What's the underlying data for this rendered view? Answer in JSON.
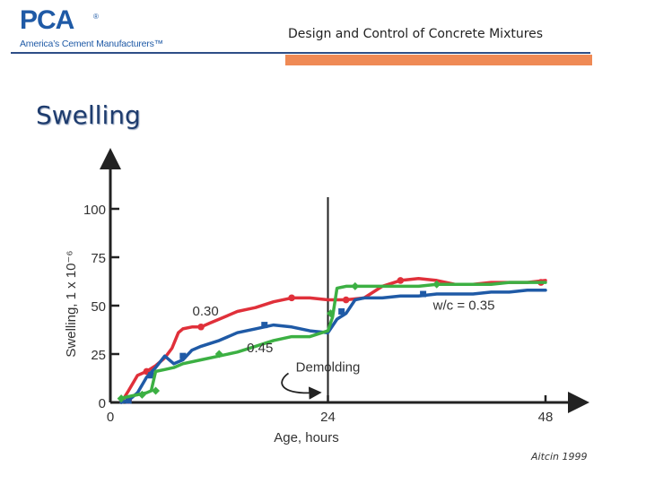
{
  "header": {
    "logo_text": "PCA",
    "logo_reg": "®",
    "logo_subtitle": "America’s Cement Manufacturers™",
    "title": "Design and Control of Concrete Mixtures"
  },
  "slide": {
    "title": "Swelling",
    "citation": "Aitcin 1999"
  },
  "colors": {
    "blue_rule": "#2e4e87",
    "orange_bar": "#ef8a55",
    "series_030": "#e0303a",
    "series_035": "#1f5aa6",
    "series_045": "#3cb043"
  },
  "chart_data": {
    "type": "line",
    "xlabel": "Age, hours",
    "ylabel": "Swelling, 1 x 10⁻⁶",
    "xlim": [
      0,
      48
    ],
    "ylim": [
      0,
      100
    ],
    "xticks": [
      0,
      24,
      48
    ],
    "yticks": [
      0,
      25,
      50,
      75,
      100
    ],
    "grid": false,
    "annotations": [
      {
        "text": "0.30",
        "x": 10.5,
        "y": 45
      },
      {
        "text": "0.45",
        "x": 16.5,
        "y": 26
      },
      {
        "text": "w/c = 0.35",
        "x": 39,
        "y": 48
      },
      {
        "text": "Demolding",
        "x": 24,
        "y": 16
      }
    ],
    "vline": 24,
    "series": [
      {
        "name": "0.30",
        "color": "#e0303a",
        "x": [
          1.2,
          2,
          3,
          4,
          5,
          6,
          6.8,
          7.5,
          8,
          9,
          10,
          11,
          12,
          13,
          14,
          15,
          16,
          18,
          20,
          22,
          24,
          26,
          28,
          30,
          32,
          34,
          36,
          38,
          40,
          42,
          44,
          46,
          48
        ],
        "y": [
          0,
          6,
          14,
          16,
          19,
          23,
          28,
          36,
          38,
          39,
          39,
          41,
          43,
          45,
          47,
          48,
          49,
          52,
          54,
          54,
          53,
          53,
          54,
          60,
          63,
          64,
          63,
          61,
          61,
          62,
          62,
          62,
          63
        ],
        "markers_x": [
          2,
          4,
          10,
          20,
          26,
          32,
          47.5
        ],
        "markers_y": [
          1,
          16,
          39,
          54,
          53,
          63,
          62
        ]
      },
      {
        "name": "w/c = 0.35",
        "color": "#1f5aa6",
        "x": [
          1.2,
          2,
          3,
          4,
          5,
          6,
          7,
          8,
          9,
          10,
          12,
          14,
          16,
          18,
          20,
          22,
          24,
          25,
          26,
          27,
          28,
          30,
          32,
          34,
          36,
          38,
          40,
          42,
          44,
          46,
          48
        ],
        "y": [
          0,
          1,
          5,
          13,
          18,
          24,
          20,
          22,
          27,
          29,
          32,
          36,
          38,
          40,
          39,
          37,
          36,
          43,
          46,
          53,
          54,
          54,
          55,
          55,
          56,
          56,
          56,
          57,
          57,
          58,
          58
        ],
        "markers_x": [
          2,
          4.5,
          8,
          17,
          25.5,
          34.5
        ],
        "markers_y": [
          1,
          14,
          24,
          40,
          47,
          56
        ]
      },
      {
        "name": "0.45",
        "color": "#3cb043",
        "x": [
          1,
          2,
          3,
          4,
          4.5,
          5,
          6,
          7,
          8,
          10,
          12,
          14,
          16,
          18,
          20,
          22,
          24,
          24.5,
          25,
          26,
          28,
          30,
          32,
          34,
          36,
          38,
          40,
          42,
          44,
          46,
          48
        ],
        "y": [
          2,
          3,
          4,
          5,
          6,
          16,
          17,
          18,
          20,
          22,
          24,
          26,
          29,
          32,
          34,
          34,
          37,
          44,
          59,
          60,
          60,
          60,
          60,
          60,
          61,
          61,
          61,
          61,
          62,
          62,
          62
        ],
        "markers_x": [
          1.2,
          3.5,
          5,
          12,
          24.3,
          27,
          36
        ],
        "markers_y": [
          2,
          4,
          6,
          25,
          46,
          60,
          61
        ]
      }
    ]
  }
}
